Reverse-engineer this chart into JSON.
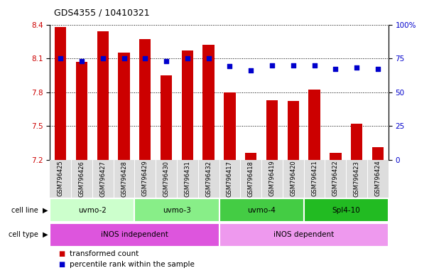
{
  "title": "GDS4355 / 10410321",
  "samples": [
    "GSM796425",
    "GSM796426",
    "GSM796427",
    "GSM796428",
    "GSM796429",
    "GSM796430",
    "GSM796431",
    "GSM796432",
    "GSM796417",
    "GSM796418",
    "GSM796419",
    "GSM796420",
    "GSM796421",
    "GSM796422",
    "GSM796423",
    "GSM796424"
  ],
  "bar_values": [
    8.38,
    8.07,
    8.34,
    8.15,
    8.27,
    7.95,
    8.17,
    8.22,
    7.8,
    7.26,
    7.73,
    7.72,
    7.82,
    7.26,
    7.52,
    7.31
  ],
  "dot_values": [
    75,
    73,
    75,
    75,
    75,
    73,
    75,
    75,
    69,
    66,
    70,
    70,
    70,
    67,
    68,
    67
  ],
  "ylim_left": [
    7.2,
    8.4
  ],
  "ylim_right": [
    0,
    100
  ],
  "yticks_left": [
    7.2,
    7.5,
    7.8,
    8.1,
    8.4
  ],
  "yticks_right": [
    0,
    25,
    50,
    75,
    100
  ],
  "ytick_labels_right": [
    "0",
    "25",
    "50",
    "75",
    "100%"
  ],
  "bar_color": "#cc0000",
  "dot_color": "#0000cc",
  "bar_bottom": 7.2,
  "cell_lines": [
    {
      "label": "uvmo-2",
      "start": 0,
      "end": 4,
      "color": "#ccffcc"
    },
    {
      "label": "uvmo-3",
      "start": 4,
      "end": 8,
      "color": "#88ee88"
    },
    {
      "label": "uvmo-4",
      "start": 8,
      "end": 12,
      "color": "#44cc44"
    },
    {
      "label": "Spl4-10",
      "start": 12,
      "end": 16,
      "color": "#22bb22"
    }
  ],
  "cell_types": [
    {
      "label": "iNOS independent",
      "start": 0,
      "end": 8,
      "color": "#dd55dd"
    },
    {
      "label": "iNOS dependent",
      "start": 8,
      "end": 16,
      "color": "#ee99ee"
    }
  ],
  "legend_red_label": "transformed count",
  "legend_blue_label": "percentile rank within the sample",
  "tick_area_color": "#dddddd"
}
